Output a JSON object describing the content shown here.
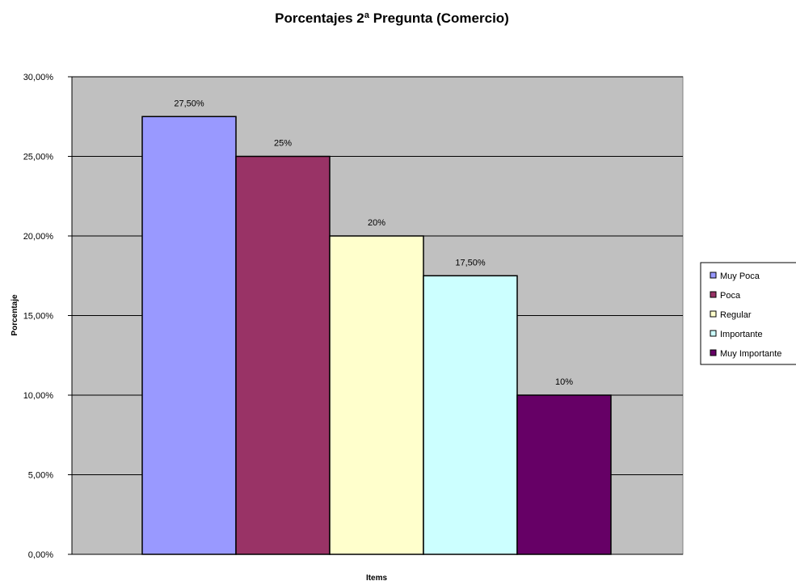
{
  "chart_data": {
    "type": "bar",
    "title": "Porcentajes 2ª Pregunta (Comercio)",
    "xlabel": "Items",
    "ylabel": "Porcentaje",
    "ylim": [
      0,
      30
    ],
    "yticks": [
      0,
      5,
      10,
      15,
      20,
      25,
      30
    ],
    "ytick_labels": [
      "0,00%",
      "5,00%",
      "10,00%",
      "15,00%",
      "20,00%",
      "25,00%",
      "30,00%"
    ],
    "grid": true,
    "legend_position": "right",
    "series": [
      {
        "name": "Muy Poca",
        "value": 27.5,
        "label": "27,50%",
        "color": "#9999ff"
      },
      {
        "name": "Poca",
        "value": 25,
        "label": "25%",
        "color": "#993366"
      },
      {
        "name": "Regular",
        "value": 20,
        "label": "20%",
        "color": "#ffffcc"
      },
      {
        "name": "Importante",
        "value": 17.5,
        "label": "17,50%",
        "color": "#ccffff"
      },
      {
        "name": "Muy Importante",
        "value": 10,
        "label": "10%",
        "color": "#660066"
      }
    ],
    "plot_background": "#c0c0c0"
  }
}
